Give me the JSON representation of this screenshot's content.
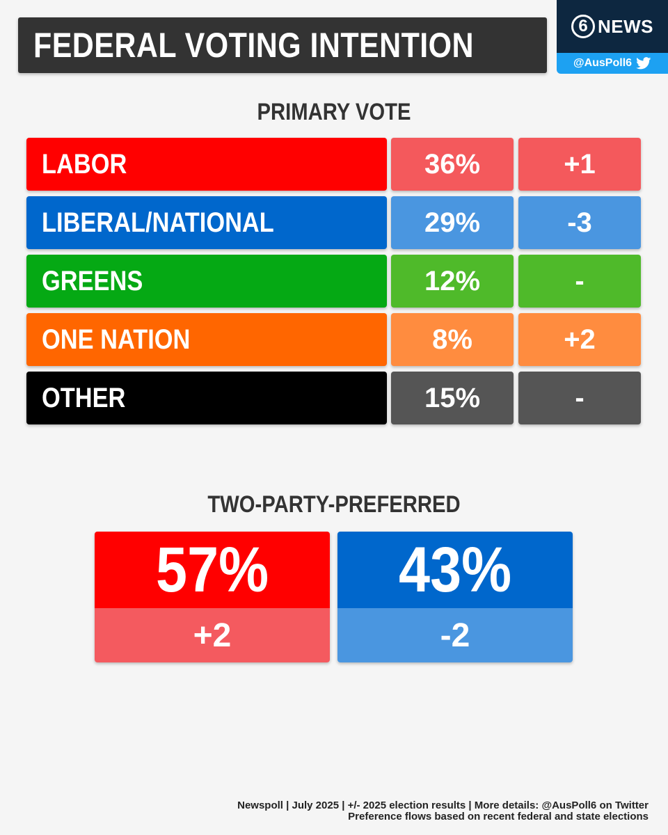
{
  "header": {
    "title": "FEDERAL VOTING INTENTION",
    "brand_number": "6",
    "brand_name": "NEWS",
    "handle": "@AusPoll6"
  },
  "chart_data": [
    {
      "type": "table",
      "title": "PRIMARY VOTE",
      "rows": [
        {
          "party": "LABOR",
          "value": "36%",
          "change": "+1",
          "color": "#ff0000",
          "light": "#f4595c"
        },
        {
          "party": "LIBERAL/NATIONAL",
          "value": "29%",
          "change": "-3",
          "color": "#0067cc",
          "light": "#4a96e0"
        },
        {
          "party": "GREENS",
          "value": "12%",
          "change": "-",
          "color": "#05a914",
          "light": "#4fba2a"
        },
        {
          "party": "ONE NATION",
          "value": "8%",
          "change": "+2",
          "color": "#ff6600",
          "light": "#ff8c3f"
        },
        {
          "party": "OTHER",
          "value": "15%",
          "change": "-",
          "color": "#000000",
          "light": "#555555"
        }
      ]
    },
    {
      "type": "table",
      "title": "TWO-PARTY-PREFERRED",
      "entries": [
        {
          "value": "57%",
          "change": "+2",
          "color": "#ff0000",
          "light": "#f45a5f"
        },
        {
          "value": "43%",
          "change": "-2",
          "color": "#0067cc",
          "light": "#4a96e0"
        }
      ]
    }
  ],
  "footer": {
    "line1": "Newspoll | July 2025 | +/- 2025 election results | More details: @AusPoll6 on Twitter",
    "line2": "Preference flows based on recent federal and state elections"
  }
}
